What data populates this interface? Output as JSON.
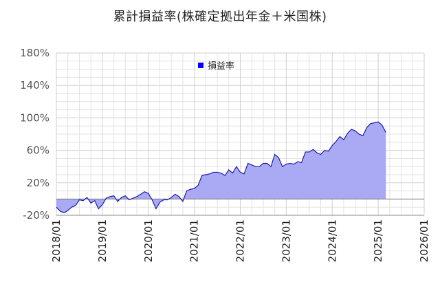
{
  "chart_data": {
    "type": "area",
    "title": "累計損益率(株確定拠出年金＋米国株)",
    "legend": {
      "label": "損益率",
      "placement": "top-center"
    },
    "colors": {
      "line": "#1a1aa8",
      "fill": "#a9a9f4",
      "legend_marker": "#0000ff",
      "zero_line": "#777777",
      "grid": "#e2e2e2"
    },
    "ylim": [
      -20,
      180
    ],
    "yticks": [
      -20,
      20,
      60,
      100,
      140,
      180
    ],
    "ytick_labels": [
      "-20%",
      "20%",
      "60%",
      "100%",
      "140%",
      "180%"
    ],
    "xlim": [
      "2018/01",
      "2026/01"
    ],
    "xtick_labels": [
      "2018/01",
      "2019/01",
      "2020/01",
      "2021/01",
      "2022/01",
      "2023/01",
      "2024/01",
      "2025/01",
      "2026/01"
    ],
    "grid": true,
    "series": [
      {
        "name": "損益率",
        "x": [
          "2018/01",
          "2018/02",
          "2018/03",
          "2018/04",
          "2018/05",
          "2018/06",
          "2018/07",
          "2018/08",
          "2018/09",
          "2018/10",
          "2018/11",
          "2018/12",
          "2019/01",
          "2019/02",
          "2019/03",
          "2019/04",
          "2019/05",
          "2019/06",
          "2019/07",
          "2019/08",
          "2019/09",
          "2019/10",
          "2019/11",
          "2019/12",
          "2020/01",
          "2020/02",
          "2020/03",
          "2020/04",
          "2020/05",
          "2020/06",
          "2020/07",
          "2020/08",
          "2020/09",
          "2020/10",
          "2020/11",
          "2020/12",
          "2021/01",
          "2021/02",
          "2021/03",
          "2021/04",
          "2021/05",
          "2021/06",
          "2021/07",
          "2021/08",
          "2021/09",
          "2021/10",
          "2021/11",
          "2021/12",
          "2022/01",
          "2022/02",
          "2022/03",
          "2022/04",
          "2022/05",
          "2022/06",
          "2022/07",
          "2022/08",
          "2022/09",
          "2022/10",
          "2022/11",
          "2022/12",
          "2023/01",
          "2023/02",
          "2023/03",
          "2023/04",
          "2023/05",
          "2023/06",
          "2023/07",
          "2023/08",
          "2023/09",
          "2023/10",
          "2023/11",
          "2023/12",
          "2024/01",
          "2024/02",
          "2024/03",
          "2024/04",
          "2024/05",
          "2024/06",
          "2024/07",
          "2024/08",
          "2024/09",
          "2024/10",
          "2024/11",
          "2024/12",
          "2025/01",
          "2025/02",
          "2025/03"
        ],
        "values": [
          -10,
          -15,
          -17,
          -14,
          -10,
          -8,
          -1,
          -2,
          2,
          -5,
          -2,
          -12,
          -7,
          1,
          3,
          4,
          -3,
          2,
          4,
          -1,
          1,
          3,
          6,
          9,
          7,
          -1,
          -12,
          -4,
          -1,
          -1,
          2,
          6,
          3,
          -3,
          10,
          12,
          13,
          17,
          29,
          30,
          31,
          33,
          33,
          32,
          29,
          36,
          32,
          40,
          33,
          31,
          44,
          42,
          40,
          40,
          44,
          44,
          40,
          55,
          51,
          40,
          43,
          44,
          43,
          46,
          45,
          58,
          58,
          61,
          57,
          55,
          60,
          59,
          66,
          71,
          77,
          73,
          81,
          86,
          84,
          80,
          78,
          88,
          93,
          94,
          95,
          91,
          82
        ]
      }
    ]
  }
}
